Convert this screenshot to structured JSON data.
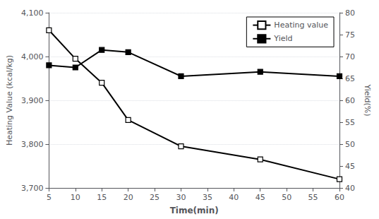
{
  "chart_data": {
    "type": "line",
    "xlabel": "Time(min)",
    "ylabel": "Heating Value (kcal/kg)",
    "y2label": "Yield(%)",
    "x": [
      5,
      10,
      15,
      20,
      30,
      45,
      60
    ],
    "series": [
      {
        "name": "Heating value",
        "color": "#000000",
        "marker": "square_open",
        "values": [
          4060,
          3995,
          3940,
          3855,
          3795,
          3765,
          3720
        ]
      },
      {
        "name": "Yield",
        "color": "#000000",
        "marker": "square",
        "axis": "y2",
        "values": [
          68.0,
          67.5,
          71.5,
          71.0,
          65.5,
          66.5,
          65.5
        ]
      }
    ],
    "xlim": [
      5,
      60
    ],
    "xticks": [
      5,
      10,
      15,
      20,
      25,
      30,
      35,
      40,
      45,
      50,
      55,
      60
    ],
    "ylim": [
      3700,
      4100
    ],
    "yticks": [
      3700,
      3800,
      3900,
      4000,
      4100
    ],
    "y2lim": [
      40,
      80
    ],
    "y2ticks": [
      40,
      45,
      50,
      55,
      60,
      65,
      70,
      75,
      80
    ],
    "grid": true,
    "legend": "upper right"
  }
}
